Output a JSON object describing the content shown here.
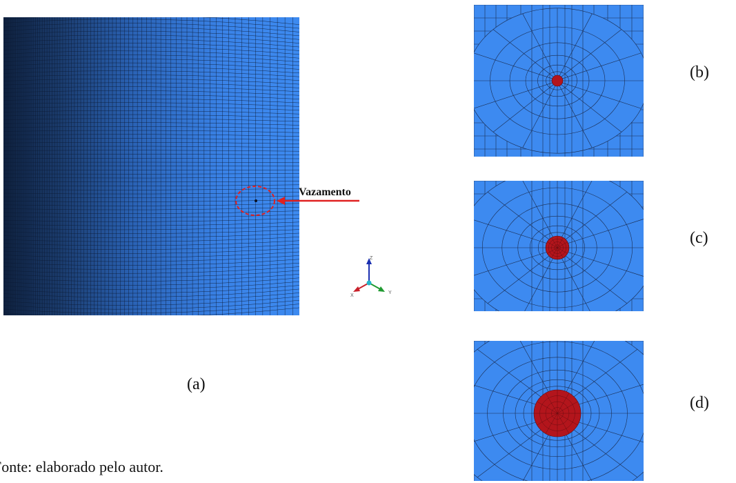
{
  "figure": {
    "main_label": "(a)",
    "detail_labels": [
      "(b)",
      "(c)",
      "(d)"
    ],
    "leak_annotation": "Vazamento",
    "source_note": "Fonte: elaborado pelo autor.",
    "axis_letters": {
      "z": "Z",
      "x": "X",
      "y": "Y"
    }
  },
  "colors": {
    "mesh_surface": "#3a86ec",
    "mesh_shadow": "#122a4a",
    "mesh_lines": "#1b2c4f",
    "leak_hole": "#b3151c",
    "annotation": "#e02020"
  },
  "panels": [
    "main-cylinder-mesh",
    "detail-small-hole",
    "detail-medium-hole",
    "detail-large-hole"
  ]
}
